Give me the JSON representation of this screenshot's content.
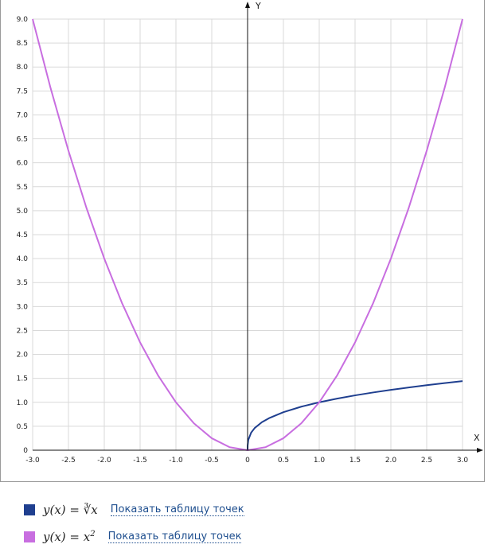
{
  "chart_data": {
    "type": "line",
    "xlabel": "X",
    "ylabel": "Y",
    "xlim": [
      -3.0,
      3.0
    ],
    "ylim": [
      0,
      9.0
    ],
    "x_ticks": [
      "-3.0",
      "-2.5",
      "-2.0",
      "-1.5",
      "-1.0",
      "-0.5",
      "0",
      "0.5",
      "1.0",
      "1.5",
      "2.0",
      "2.5",
      "3.0"
    ],
    "y_ticks": [
      "0",
      "0.5",
      "1.0",
      "1.5",
      "2.0",
      "2.5",
      "3.0",
      "3.5",
      "4.0",
      "4.5",
      "5.0",
      "5.5",
      "6.0",
      "6.5",
      "7.0",
      "7.5",
      "8.0",
      "8.5",
      "9.0"
    ],
    "grid": true,
    "series": [
      {
        "name": "y(x) = ∛x",
        "color": "#1f3f8f",
        "x": [
          0,
          0.001,
          0.01,
          0.05,
          0.1,
          0.2,
          0.3,
          0.5,
          0.75,
          1.0,
          1.25,
          1.5,
          1.75,
          2.0,
          2.25,
          2.5,
          2.75,
          3.0
        ],
        "y": [
          0,
          0.1,
          0.215,
          0.368,
          0.464,
          0.585,
          0.669,
          0.794,
          0.909,
          1.0,
          1.077,
          1.145,
          1.205,
          1.26,
          1.31,
          1.357,
          1.401,
          1.442
        ]
      },
      {
        "name": "y(x) = x²",
        "color": "#c86ee0",
        "x": [
          -3.0,
          -2.75,
          -2.5,
          -2.25,
          -2.0,
          -1.75,
          -1.5,
          -1.25,
          -1.0,
          -0.75,
          -0.5,
          -0.25,
          0,
          0.25,
          0.5,
          0.75,
          1.0,
          1.25,
          1.5,
          1.75,
          2.0,
          2.25,
          2.5,
          2.75,
          3.0
        ],
        "y": [
          9.0,
          7.5625,
          6.25,
          5.0625,
          4.0,
          3.0625,
          2.25,
          1.5625,
          1.0,
          0.5625,
          0.25,
          0.0625,
          0,
          0.0625,
          0.25,
          0.5625,
          1.0,
          1.5625,
          2.25,
          3.0625,
          4.0,
          5.0625,
          6.25,
          7.5625,
          9.0
        ]
      }
    ]
  },
  "legend": {
    "items": [
      {
        "formula_lhs": "y(x) = ",
        "formula_rhs": "∛x",
        "formula_sup": "",
        "color": "#1f3f8f",
        "link": "Показать таблицу точек"
      },
      {
        "formula_lhs": "y(x) = ",
        "formula_rhs": "x",
        "formula_sup": "2",
        "color": "#c86ee0",
        "link": "Показать таблицу точек"
      }
    ]
  }
}
